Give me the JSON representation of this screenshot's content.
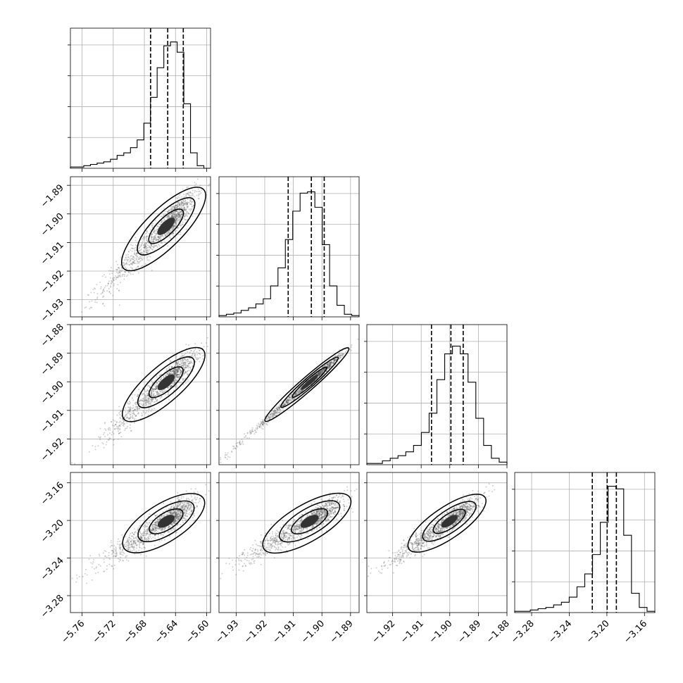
{
  "chart_data": {
    "type": "scatter",
    "kind": "corner plot",
    "parameters": [
      {
        "index": 0,
        "range": [
          -5.775,
          -5.595
        ],
        "ticks": [
          -5.76,
          -5.72,
          -5.68,
          -5.64,
          -5.6
        ],
        "tick_labels": [
          "−5.76",
          "−5.72",
          "−5.68",
          "−5.64",
          "−5.60"
        ],
        "median": -5.65,
        "quantile_16": -5.672,
        "quantile_84": -5.63,
        "hist_heights": [
          0.01,
          0.01,
          0.02,
          0.03,
          0.04,
          0.05,
          0.07,
          0.1,
          0.12,
          0.16,
          0.22,
          0.35,
          0.55,
          0.78,
          0.95,
          0.98,
          0.9,
          0.5,
          0.12,
          0.02,
          0.0
        ]
      },
      {
        "index": 1,
        "range": [
          -1.936,
          -1.887
        ],
        "ticks": [
          -1.93,
          -1.92,
          -1.91,
          -1.9,
          -1.89
        ],
        "tick_labels": [
          "−1.93",
          "−1.92",
          "−1.91",
          "−1.90",
          "−1.89"
        ],
        "median": -1.9037,
        "quantile_16": -1.9118,
        "quantile_84": -1.8992,
        "hist_heights": [
          0.01,
          0.02,
          0.03,
          0.05,
          0.07,
          0.1,
          0.14,
          0.24,
          0.38,
          0.6,
          0.82,
          0.96,
          0.97,
          0.85,
          0.56,
          0.24,
          0.09,
          0.02,
          0.01
        ]
      },
      {
        "index": 2,
        "range": [
          -1.929,
          -1.88
        ],
        "ticks": [
          -1.92,
          -1.91,
          -1.9,
          -1.89,
          -1.88
        ],
        "tick_labels": [
          "−1.92",
          "−1.91",
          "−1.90",
          "−1.89",
          "−1.88"
        ],
        "median": -1.8996,
        "quantile_16": -1.9064,
        "quantile_84": -1.8953,
        "hist_heights": [
          0.01,
          0.01,
          0.03,
          0.05,
          0.07,
          0.1,
          0.15,
          0.25,
          0.4,
          0.66,
          0.86,
          0.92,
          0.86,
          0.64,
          0.36,
          0.15,
          0.05,
          0.02
        ]
      },
      {
        "index": 3,
        "range": [
          -3.298,
          -3.149
        ],
        "ticks": [
          -3.28,
          -3.24,
          -3.2,
          -3.16
        ],
        "tick_labels": [
          "−3.28",
          "−3.24",
          "−3.20",
          "−3.16"
        ],
        "median": -3.1997,
        "quantile_16": -3.2155,
        "quantile_84": -3.1899,
        "hist_heights": [
          0.01,
          0.01,
          0.02,
          0.03,
          0.04,
          0.06,
          0.08,
          0.12,
          0.2,
          0.3,
          0.45,
          0.7,
          0.98,
          0.96,
          0.6,
          0.15,
          0.04,
          0.01
        ]
      }
    ],
    "correlations": {
      "1,0": 0.9,
      "2,0": 0.9,
      "2,1": 0.99,
      "3,0": 0.85,
      "3,1": 0.88,
      "3,2": 0.9
    },
    "grid": true,
    "xlabel": "",
    "ylabel": "",
    "title": ""
  }
}
